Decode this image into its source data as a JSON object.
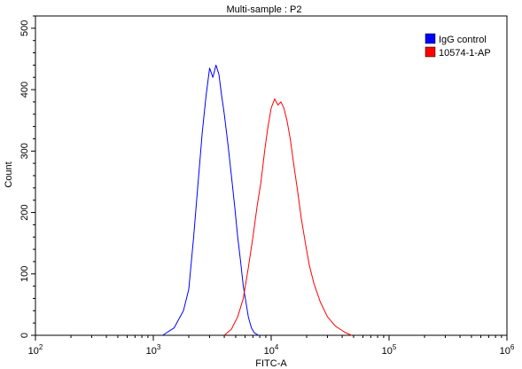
{
  "chart_data": {
    "type": "line",
    "title": "Multi-sample : P2",
    "xlabel": "FITC-A",
    "ylabel": "Count",
    "x_scale": "log",
    "xlim": [
      100,
      1000000
    ],
    "ylim": [
      0,
      520
    ],
    "x_ticks": [
      {
        "value": 100,
        "base": "10",
        "exp": "2"
      },
      {
        "value": 1000,
        "base": "10",
        "exp": "3"
      },
      {
        "value": 10000,
        "base": "10",
        "exp": "4"
      },
      {
        "value": 100000,
        "base": "10",
        "exp": "5"
      },
      {
        "value": 1000000,
        "base": "10",
        "exp": "6"
      }
    ],
    "y_ticks": [
      0,
      100,
      200,
      300,
      400,
      500
    ],
    "legend_position": "top-right",
    "series": [
      {
        "name": "IgG control",
        "color": "#0000ff",
        "x": [
          1200,
          1500,
          1800,
          2000,
          2200,
          2400,
          2600,
          2800,
          3000,
          3200,
          3400,
          3600,
          3800,
          4000,
          4300,
          4600,
          4900,
          5200,
          5500,
          5800,
          6100,
          6400,
          6800,
          7200,
          7800
        ],
        "values": [
          0,
          12,
          40,
          75,
          160,
          250,
          330,
          390,
          435,
          420,
          440,
          425,
          390,
          360,
          310,
          260,
          210,
          160,
          120,
          80,
          55,
          30,
          12,
          4,
          0
        ]
      },
      {
        "name": "10574-1-AP",
        "color": "#ff0000",
        "x": [
          4000,
          4600,
          5200,
          5800,
          6400,
          7000,
          7600,
          8200,
          8800,
          9400,
          10000,
          10700,
          11400,
          12100,
          12800,
          13600,
          14500,
          15500,
          16600,
          18000,
          19500,
          21000,
          23000,
          26000,
          30000,
          35000,
          42000,
          48000
        ],
        "values": [
          0,
          10,
          30,
          60,
          110,
          160,
          210,
          250,
          300,
          340,
          370,
          385,
          375,
          380,
          370,
          350,
          320,
          280,
          240,
          190,
          150,
          115,
          85,
          55,
          30,
          15,
          5,
          0
        ]
      }
    ]
  }
}
